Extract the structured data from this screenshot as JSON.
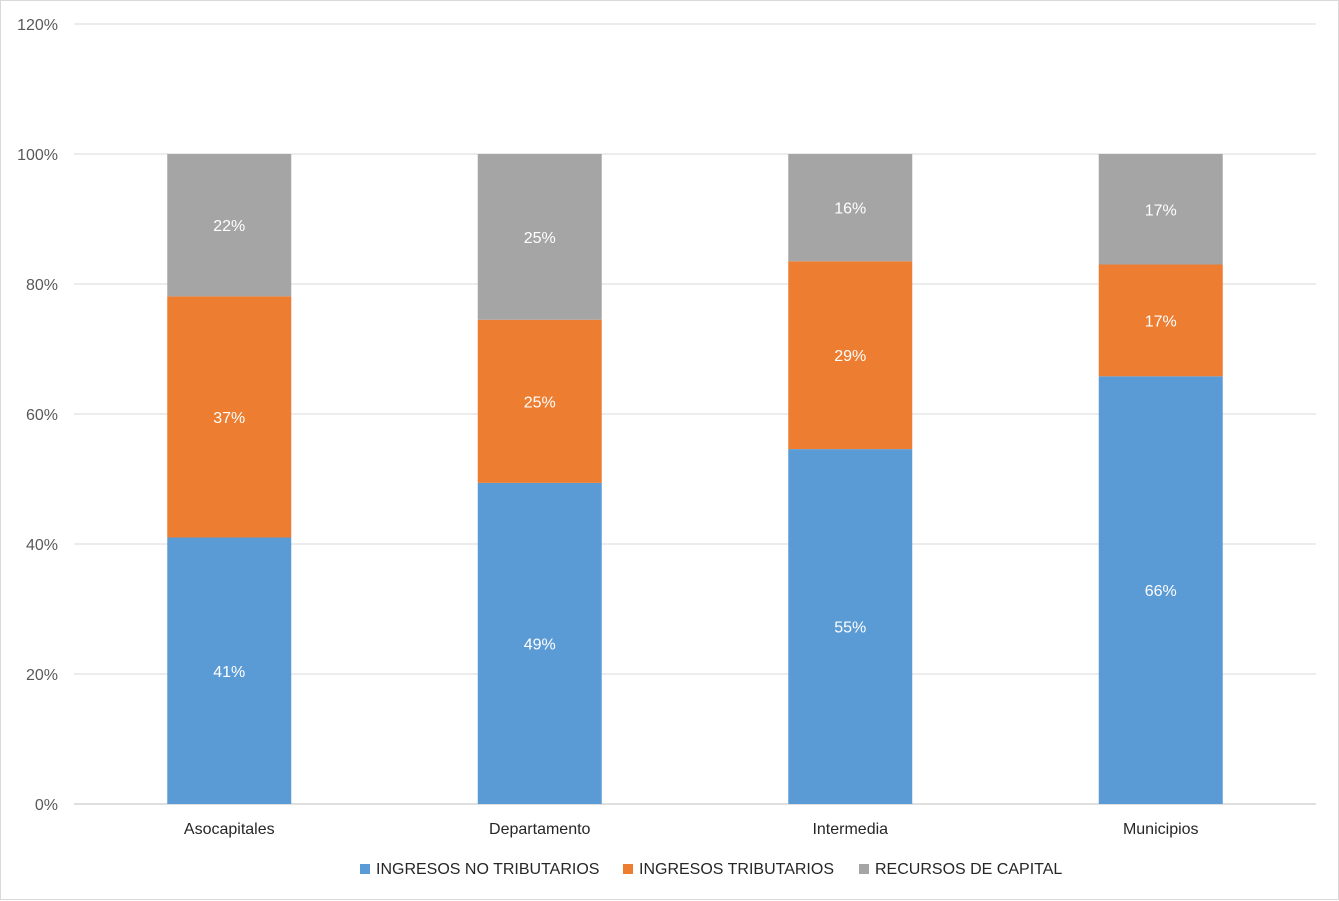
{
  "chart_data": {
    "type": "bar",
    "stacked": true,
    "title": "",
    "xlabel": "",
    "ylabel": "",
    "categories": [
      "Asocapitales",
      "Departamento",
      "Intermedia",
      "Municipios"
    ],
    "series": [
      {
        "name": "INGRESOS NO TRIBUTARIOS",
        "color": "#5b9bd5",
        "values": [
          0.41,
          0.494,
          0.546,
          0.658
        ],
        "labels": [
          "41%",
          "49%",
          "55%",
          "66%"
        ]
      },
      {
        "name": "INGRESOS TRIBUTARIOS",
        "color": "#ed7d31",
        "values": [
          0.371,
          0.251,
          0.289,
          0.172
        ],
        "labels": [
          "37%",
          "25%",
          "29%",
          "17%"
        ]
      },
      {
        "name": "RECURSOS DE CAPITAL",
        "color": "#a5a5a5",
        "values": [
          0.219,
          0.255,
          0.165,
          0.17
        ],
        "labels": [
          "22%",
          "25%",
          "16%",
          "17%"
        ]
      }
    ],
    "ylim": [
      0,
      1.2
    ],
    "yticks": [
      0,
      0.2,
      0.4,
      0.6,
      0.8,
      1.0,
      1.2
    ],
    "ytick_labels": [
      "0%",
      "20%",
      "40%",
      "60%",
      "80%",
      "100%",
      "120%"
    ],
    "grid": true,
    "legend_position": "bottom"
  }
}
